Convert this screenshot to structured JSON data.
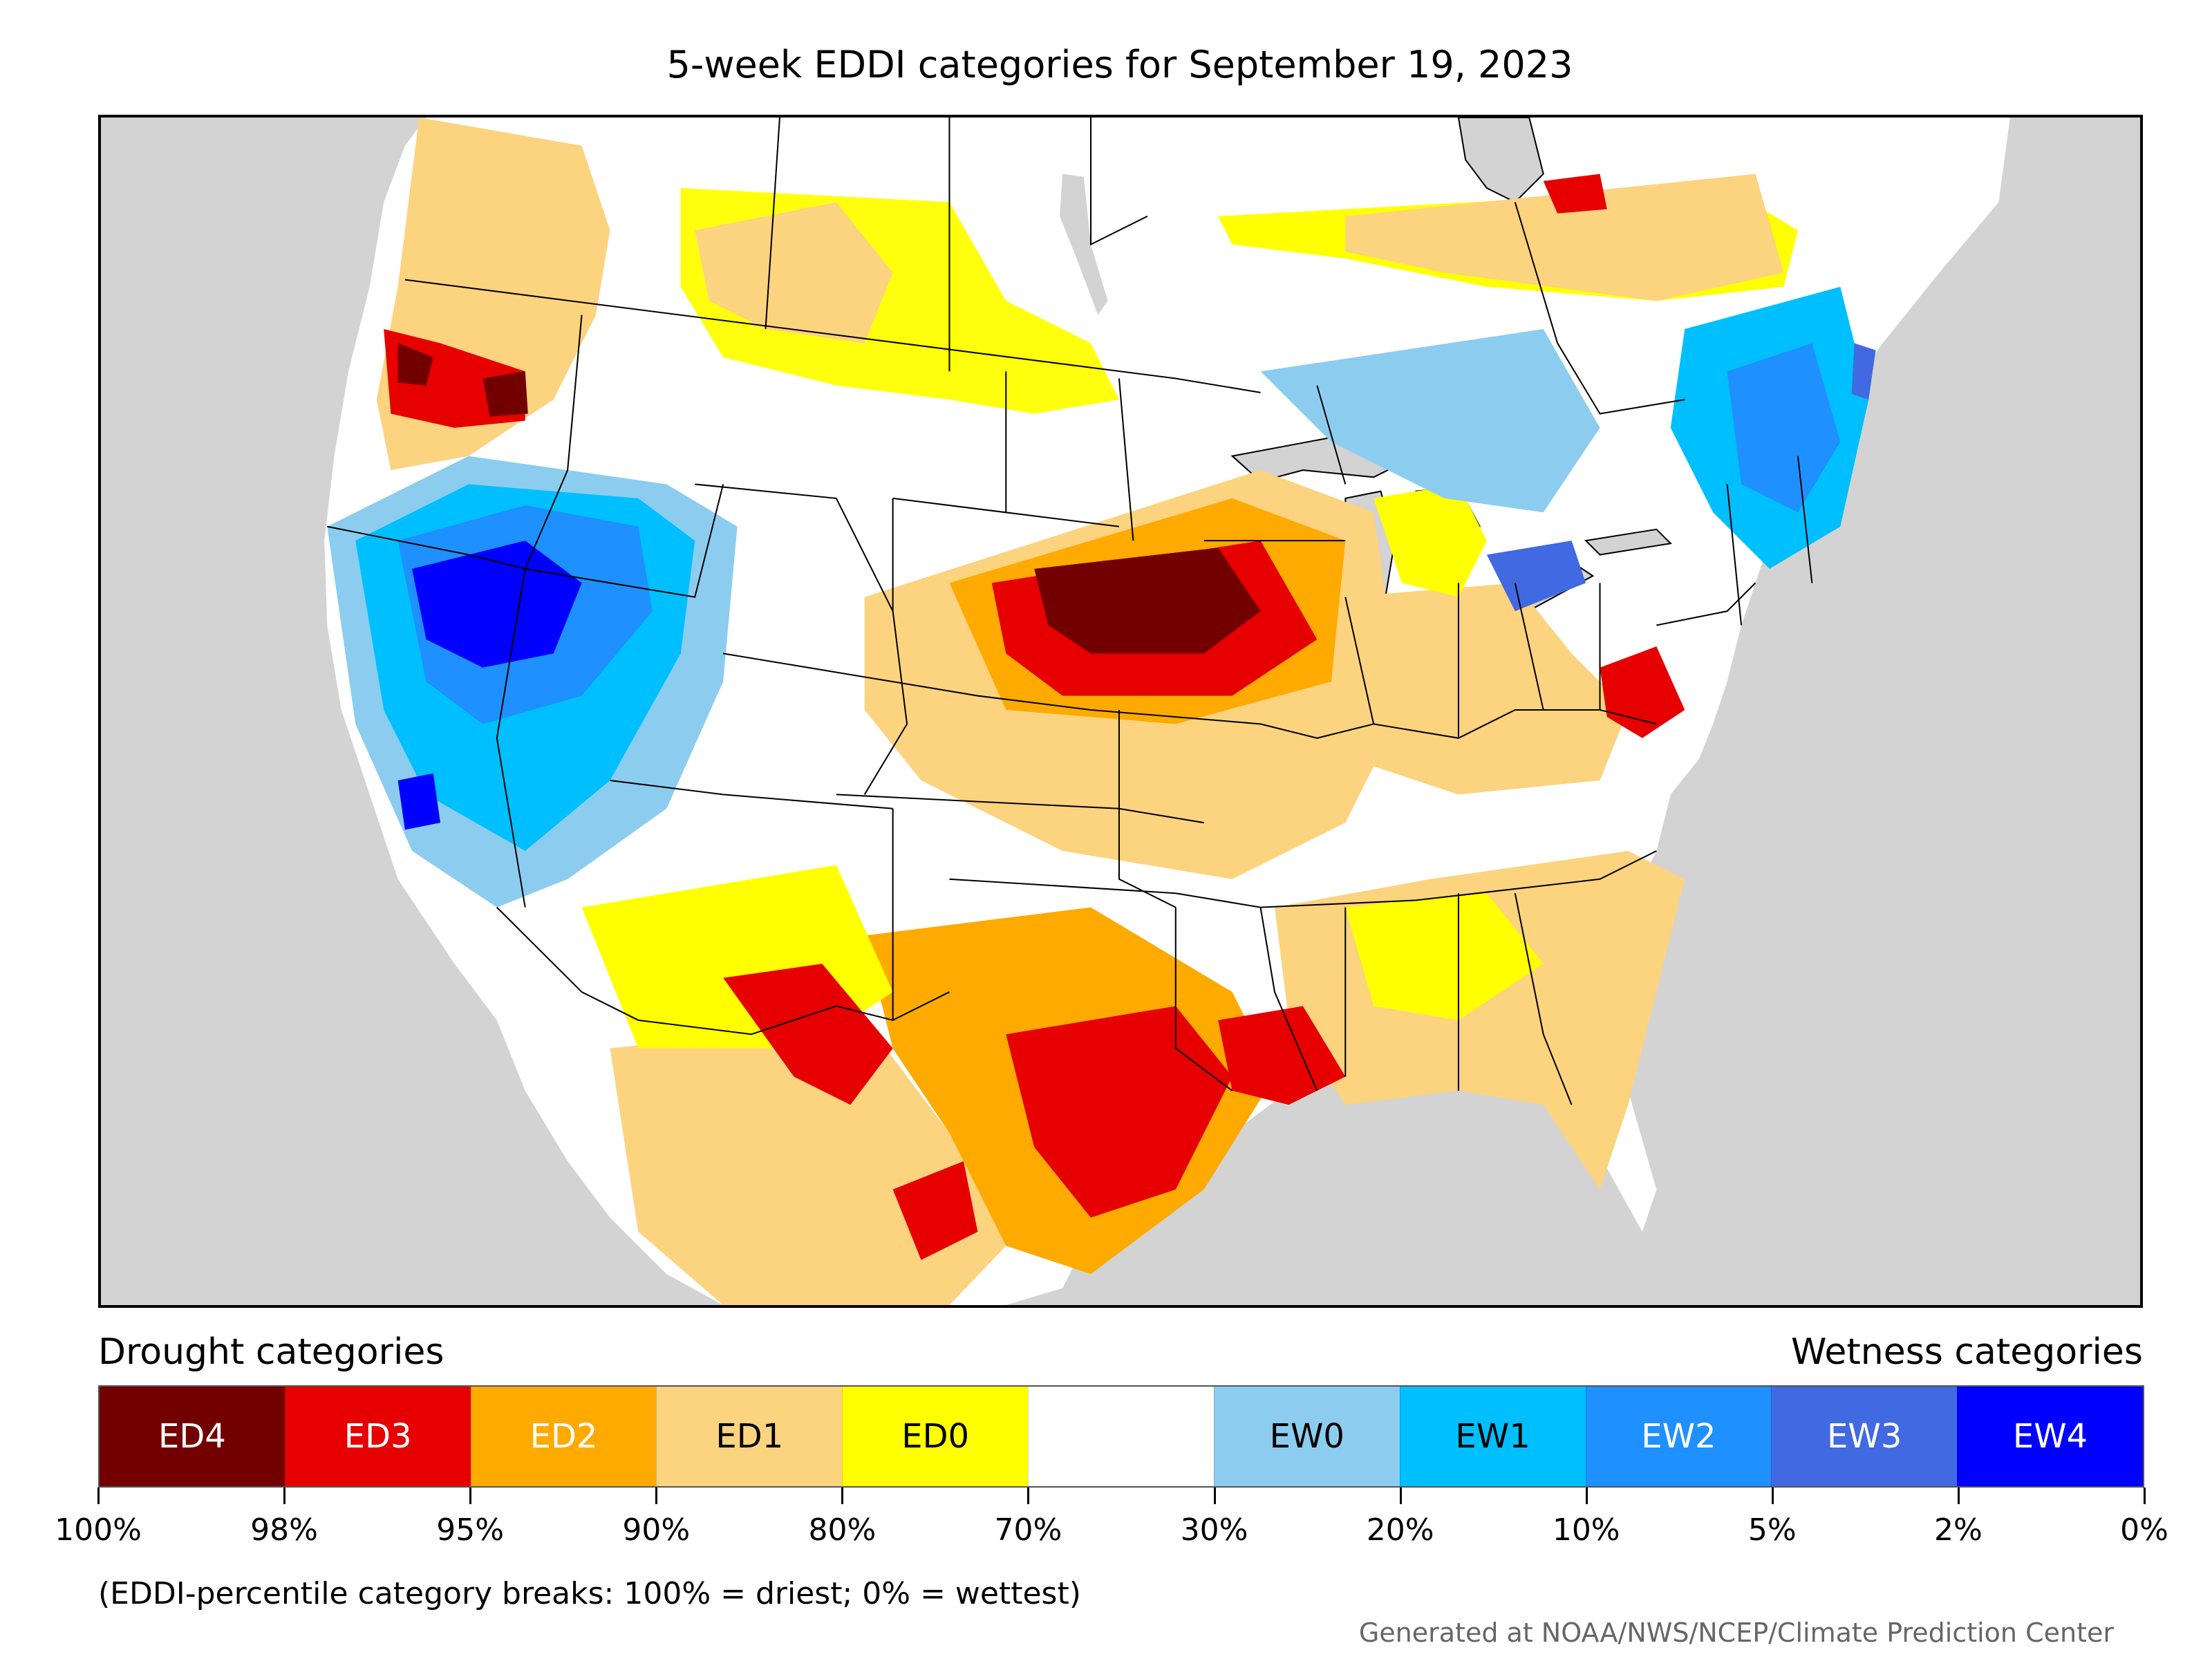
{
  "title": "5-week EDDI categories for September 19, 2023",
  "legend": {
    "drought_heading": "Drought categories",
    "wetness_heading": "Wetness categories",
    "categories": [
      {
        "label": "ED4",
        "color": "#730000",
        "text_color": "#ffffff"
      },
      {
        "label": "ED3",
        "color": "#e60000",
        "text_color": "#ffffff"
      },
      {
        "label": "ED2",
        "color": "#ffaa00",
        "text_color": "#ffffff"
      },
      {
        "label": "ED1",
        "color": "#fcd37f",
        "text_color": "#000000"
      },
      {
        "label": "ED0",
        "color": "#ffff00",
        "text_color": "#000000"
      },
      {
        "label": "",
        "color": "#ffffff",
        "text_color": "#000000"
      },
      {
        "label": "EW0",
        "color": "#8ccdef",
        "text_color": "#000000"
      },
      {
        "label": "EW1",
        "color": "#00bfff",
        "text_color": "#000000"
      },
      {
        "label": "EW2",
        "color": "#1e90ff",
        "text_color": "#ffffff"
      },
      {
        "label": "EW3",
        "color": "#4169e1",
        "text_color": "#ffffff"
      },
      {
        "label": "EW4",
        "color": "#0000ff",
        "text_color": "#ffffff"
      }
    ],
    "ticks": [
      "100%",
      "98%",
      "95%",
      "90%",
      "80%",
      "70%",
      "30%",
      "20%",
      "10%",
      "5%",
      "2%",
      "0%"
    ]
  },
  "note": "(EDDI-percentile category breaks: 100% = driest; 0% = wettest)",
  "credit": "Generated at NOAA/NWS/NCEP/Climate Prediction Center",
  "map": {
    "background_color": "#d3d3d3",
    "land_color": "#ffffff",
    "boundary_color": "#000000"
  }
}
